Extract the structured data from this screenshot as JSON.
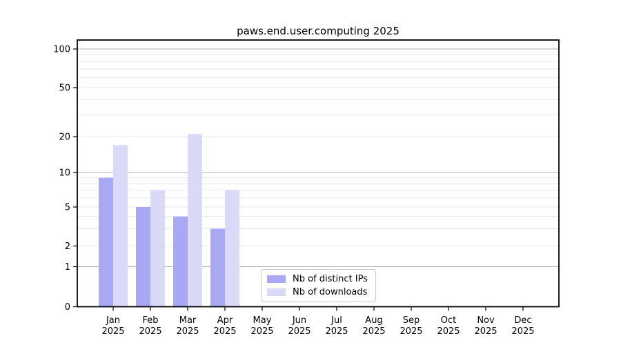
{
  "chart_data": {
    "type": "bar",
    "title": "paws.end.user.computing 2025",
    "year_label": "2025",
    "categories": [
      "Jan",
      "Feb",
      "Mar",
      "Apr",
      "May",
      "Jun",
      "Jul",
      "Aug",
      "Sep",
      "Oct",
      "Nov",
      "Dec"
    ],
    "series": [
      {
        "name": "Nb of distinct IPs",
        "color": "#a8a8f4",
        "values": [
          9,
          5,
          4,
          3,
          0,
          0,
          0,
          0,
          0,
          0,
          0,
          0
        ]
      },
      {
        "name": "Nb of downloads",
        "color": "#dadaf8",
        "values": [
          17,
          7,
          21,
          7,
          0,
          0,
          0,
          0,
          0,
          0,
          0,
          0
        ]
      }
    ],
    "xlabel": "",
    "ylabel": "",
    "yscale": "log-like with zero baseline",
    "ylim": [
      0,
      140
    ],
    "y_ticks": [
      0,
      1,
      2,
      5,
      10,
      20,
      50,
      100
    ],
    "y_major_gridlines": [
      1,
      10,
      100
    ],
    "y_minor_gridlines": [
      2,
      3,
      4,
      5,
      6,
      7,
      8,
      9,
      20,
      30,
      40,
      50,
      60,
      70,
      80,
      90
    ],
    "grid": "horizontal-on",
    "legend_position": "lower center-right inside plot",
    "colors": {
      "major_grid": "#b0b0b0",
      "minor_grid": "#e7e7e7",
      "spine": "#000000",
      "tick_label": "#000000",
      "background": "#ffffff"
    }
  }
}
